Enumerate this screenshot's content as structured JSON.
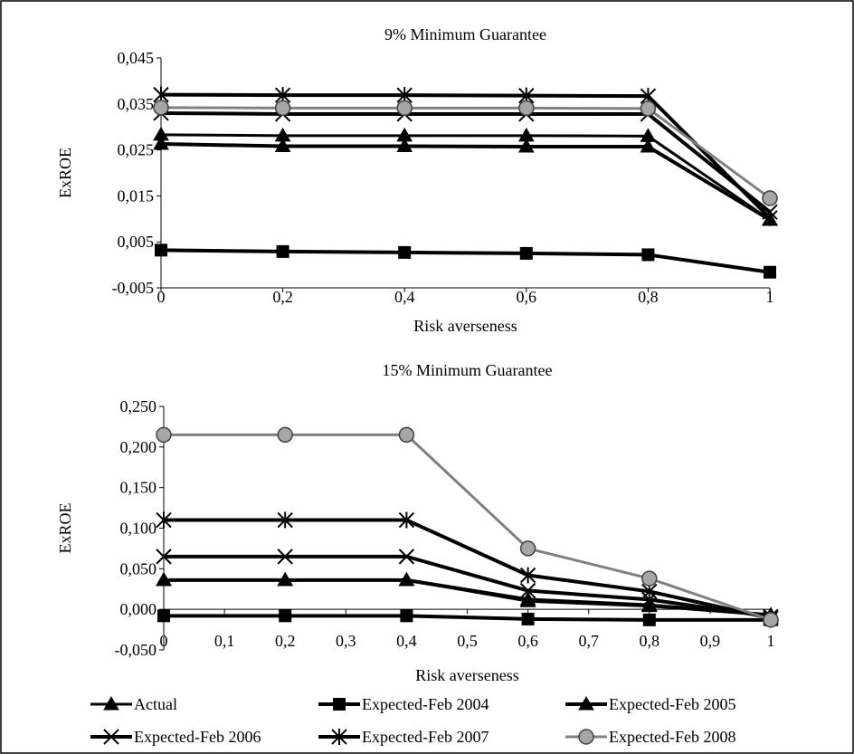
{
  "chart_data": [
    {
      "type": "line",
      "title": "9% Minimum Guarantee",
      "xlabel": "Risk averseness",
      "ylabel": "ExROE",
      "x": [
        0,
        0.2,
        0.4,
        0.6,
        0.8,
        1
      ],
      "x_ticks": [
        "0",
        "0,2",
        "0,4",
        "0,6",
        "0,8",
        "1"
      ],
      "ylim": [
        -0.005,
        0.045
      ],
      "y_ticks": [
        -0.005,
        0.005,
        0.015,
        0.025,
        0.035,
        0.045
      ],
      "y_tick_labels": [
        "-0,005",
        "0,005",
        "0,015",
        "0,025",
        "0,035",
        "0,045"
      ],
      "grid": false,
      "series": [
        {
          "name": "Actual",
          "values": [
            0.0283,
            0.0281,
            0.0281,
            0.0281,
            0.028,
            0.0098
          ]
        },
        {
          "name": "Expected-Feb 2004",
          "values": [
            0.0032,
            0.0029,
            0.0027,
            0.0025,
            0.0022,
            -0.0016
          ]
        },
        {
          "name": "Expected-Feb 2005",
          "values": [
            0.0263,
            0.0258,
            0.0258,
            0.0257,
            0.0257,
            0.0098
          ]
        },
        {
          "name": "Expected-Feb 2006",
          "values": [
            0.033,
            0.0328,
            0.0328,
            0.0328,
            0.0328,
            0.0115
          ]
        },
        {
          "name": "Expected-Feb 2007",
          "values": [
            0.037,
            0.0369,
            0.0369,
            0.0368,
            0.0367,
            0.0102
          ]
        },
        {
          "name": "Expected-Feb 2008",
          "values": [
            0.0342,
            0.0341,
            0.0341,
            0.0341,
            0.034,
            0.0145
          ]
        }
      ]
    },
    {
      "type": "line",
      "title": "15% Minimum Guarantee",
      "xlabel": "Risk averseness",
      "ylabel": "ExROE",
      "x": [
        0,
        0.2,
        0.4,
        0.6,
        0.8,
        1
      ],
      "x_ticks": [
        "0",
        "0,1",
        "0,2",
        "0,3",
        "0,4",
        "0,5",
        "0,6",
        "0,7",
        "0,8",
        "0,9",
        "1"
      ],
      "ylim": [
        -0.05,
        0.25
      ],
      "y_ticks": [
        -0.05,
        0,
        0.05,
        0.1,
        0.15,
        0.2,
        0.25
      ],
      "y_tick_labels": [
        "-0,050",
        "0,000",
        "0,050",
        "0,100",
        "0,150",
        "0,200",
        "0,250"
      ],
      "grid": false,
      "series": [
        {
          "name": "Actual",
          "values": [
            0.036,
            0.036,
            0.036,
            0.01,
            0.004,
            -0.007
          ]
        },
        {
          "name": "Expected-Feb 2004",
          "values": [
            -0.008,
            -0.008,
            -0.008,
            -0.012,
            -0.013,
            -0.013
          ]
        },
        {
          "name": "Expected-Feb 2005",
          "values": [
            0.036,
            0.036,
            0.036,
            0.012,
            0.005,
            -0.007
          ]
        },
        {
          "name": "Expected-Feb 2006",
          "values": [
            0.065,
            0.065,
            0.065,
            0.023,
            0.012,
            -0.009
          ]
        },
        {
          "name": "Expected-Feb 2007",
          "values": [
            0.11,
            0.11,
            0.11,
            0.042,
            0.022,
            -0.011
          ]
        },
        {
          "name": "Expected-Feb 2008",
          "values": [
            0.215,
            0.215,
            0.215,
            0.075,
            0.038,
            -0.013
          ]
        }
      ]
    }
  ],
  "legend": {
    "placement": "bottom",
    "entries": [
      {
        "label": "Actual",
        "marker": "triangle",
        "color": "#000000"
      },
      {
        "label": "Expected-Feb 2004",
        "marker": "square",
        "color": "#000000"
      },
      {
        "label": "Expected-Feb 2005",
        "marker": "triangle",
        "color": "#000000"
      },
      {
        "label": "Expected-Feb 2006",
        "marker": "x",
        "color": "#000000"
      },
      {
        "label": "Expected-Feb 2007",
        "marker": "star",
        "color": "#000000"
      },
      {
        "label": "Expected-Feb 2008",
        "marker": "circle",
        "color": "#808080"
      }
    ]
  }
}
